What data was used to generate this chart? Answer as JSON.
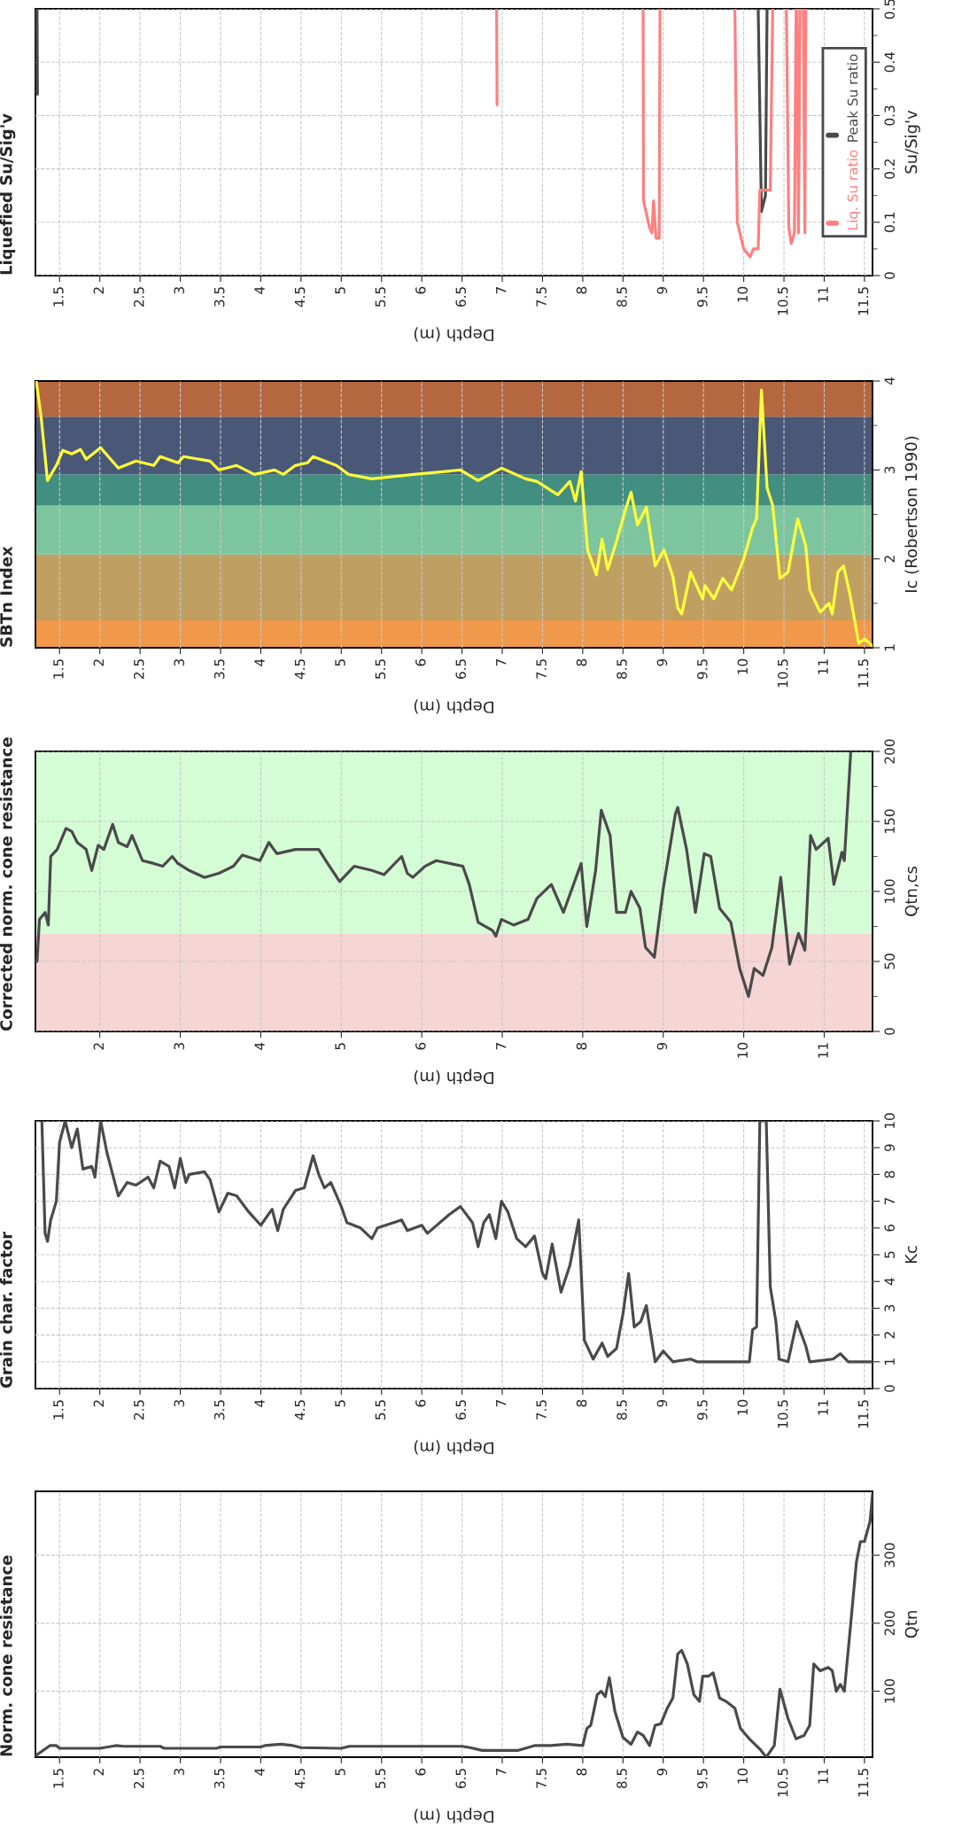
{
  "chart_data": [
    {
      "type": "line",
      "title": "Liquefied Su/Sig'v",
      "xlabel": "Depth (m)",
      "ylabel": "Su/Sig'v",
      "xlim": [
        1.2,
        11.6
      ],
      "xticks": [
        1.5,
        2,
        2.5,
        3,
        3.5,
        4,
        4.5,
        5,
        5.5,
        6,
        6.5,
        7,
        7.5,
        8,
        8.5,
        9,
        9.5,
        10,
        10.5,
        11,
        11.5
      ],
      "ylim": [
        0,
        0.5
      ],
      "yticks": [
        0,
        0.1,
        0.2,
        0.3,
        0.4,
        0.5,
        {
          "value": 0.05,
          "label": null
        },
        {
          "value": 0.15,
          "label": null
        },
        {
          "value": 0.25,
          "label": null
        },
        {
          "value": 0.35,
          "label": null
        },
        {
          "value": 0.45,
          "label": null
        }
      ],
      "grid": true,
      "legend": "right",
      "series": [
        {
          "name": "Peak Su ratio",
          "color": "#4a4a4a",
          "x": [
            1.22,
            1.225,
            5,
            10.18,
            10.22,
            10.27,
            10.29
          ],
          "values": [
            0.5,
            0.34,
            null,
            0.5,
            0.12,
            0.15,
            0.5
          ]
        },
        {
          "name": "Liq. Su ratio",
          "color": "#ff7f7f",
          "x": [
            6.93,
            6.935,
            7.5,
            8.75,
            8.755,
            8.83,
            8.86,
            8.88,
            8.91,
            8.95,
            8.96,
            9.4,
            9.89,
            9.92,
            10.0,
            10.08,
            10.12,
            10.18,
            10.2,
            10.33,
            10.36,
            10.5,
            10.53,
            10.56,
            10.59,
            10.63,
            10.65,
            10.66,
            10.68,
            10.7,
            10.74,
            10.76,
            10.77
          ],
          "values": [
            0.5,
            0.32,
            null,
            0.5,
            0.14,
            0.09,
            0.08,
            0.14,
            0.07,
            0.07,
            0.5,
            null,
            0.5,
            0.1,
            0.05,
            0.035,
            0.05,
            0.05,
            0.16,
            0.16,
            0.5,
            null,
            0.5,
            0.09,
            0.06,
            0.08,
            0.5,
            0.5,
            0.08,
            0.5,
            0.5,
            0.08,
            0.5
          ]
        }
      ]
    },
    {
      "type": "line",
      "title": "SBTn Index",
      "xlabel": "Depth (m)",
      "ylabel": "Ic (Robertson 1990)",
      "xlim": [
        1.2,
        11.6
      ],
      "xticks": [
        1.5,
        2,
        2.5,
        3,
        3.5,
        4,
        4.5,
        5,
        5.5,
        6,
        6.5,
        7,
        7.5,
        8,
        8.5,
        9,
        9.5,
        10,
        10.5,
        11,
        11.5
      ],
      "ylim": [
        1,
        4
      ],
      "yticks": [
        1,
        2,
        3,
        4,
        {
          "value": 1.5,
          "label": null
        },
        {
          "value": 2.5,
          "label": null
        },
        {
          "value": 3.5,
          "label": null
        }
      ],
      "grid": "x",
      "bands": [
        {
          "axis": "y",
          "from": 1,
          "to": 1.31,
          "color": "#f0994a"
        },
        {
          "axis": "y",
          "from": 1.31,
          "to": 2.05,
          "color": "#c0a062"
        },
        {
          "axis": "y",
          "from": 2.05,
          "to": 2.6,
          "color": "#7cc59f"
        },
        {
          "axis": "y",
          "from": 2.6,
          "to": 2.95,
          "color": "#428e80"
        },
        {
          "axis": "y",
          "from": 2.95,
          "to": 3.6,
          "color": "#4a5878"
        },
        {
          "axis": "y",
          "from": 3.6,
          "to": 4,
          "color": "#b5673f"
        }
      ],
      "series": [
        {
          "color": "#ffff3c",
          "x": [
            1.21,
            1.27,
            1.35,
            1.46,
            1.54,
            1.65,
            1.76,
            1.83,
            2.01,
            2.23,
            2.45,
            2.67,
            2.75,
            2.97,
            3.04,
            3.37,
            3.48,
            3.7,
            3.92,
            4.17,
            4.28,
            4.43,
            4.58,
            4.65,
            4.94,
            5.09,
            5.38,
            5.9,
            6.26,
            6.48,
            6.7,
            6.99,
            7.29,
            7.43,
            7.69,
            7.84,
            7.91,
            7.98,
            8.06,
            8.17,
            8.24,
            8.31,
            8.42,
            8.53,
            8.6,
            8.68,
            8.79,
            8.9,
            9.01,
            9.12,
            9.18,
            9.23,
            9.34,
            9.49,
            9.52,
            9.63,
            9.74,
            9.85,
            10.0,
            10.11,
            10.16,
            10.22,
            10.29,
            10.36,
            10.45,
            10.55,
            10.67,
            10.77,
            10.82,
            10.95,
            11.06,
            11.1,
            11.17,
            11.24,
            11.32,
            11.43,
            11.5,
            11.6
          ],
          "values": [
            4.0,
            3.6,
            2.88,
            3.05,
            3.22,
            3.18,
            3.23,
            3.12,
            3.25,
            3.02,
            3.1,
            3.05,
            3.15,
            3.08,
            3.15,
            3.1,
            3.0,
            3.05,
            2.95,
            3.0,
            2.95,
            3.05,
            3.08,
            3.15,
            3.05,
            2.95,
            2.9,
            2.95,
            2.98,
            3.0,
            2.88,
            3.02,
            2.9,
            2.87,
            2.72,
            2.87,
            2.65,
            2.98,
            2.1,
            1.82,
            2.22,
            1.88,
            2.2,
            2.55,
            2.75,
            2.38,
            2.58,
            1.92,
            2.1,
            1.8,
            1.45,
            1.38,
            1.85,
            1.55,
            1.7,
            1.55,
            1.78,
            1.65,
            2.0,
            2.35,
            2.45,
            3.9,
            2.8,
            2.6,
            1.78,
            1.85,
            2.45,
            2.15,
            1.65,
            1.4,
            1.5,
            1.38,
            1.85,
            1.92,
            1.6,
            1.05,
            1.1,
            1.02
          ]
        }
      ]
    },
    {
      "type": "line",
      "title": "Corrected norm. cone resistance",
      "xlabel": "Depth (m)",
      "ylabel": "Qtn,cs",
      "xlim": [
        1.2,
        11.6
      ],
      "xticks": [
        2,
        3,
        4,
        5,
        6,
        7,
        8,
        9,
        10,
        11
      ],
      "ylim": [
        0,
        200
      ],
      "yticks": [
        0,
        50,
        100,
        150,
        200,
        {
          "value": 25,
          "label": null
        },
        {
          "value": 75,
          "label": null
        },
        {
          "value": 125,
          "label": null
        },
        {
          "value": 175,
          "label": null
        }
      ],
      "grid": true,
      "bands": [
        {
          "axis": "y",
          "from": 0,
          "to": 70,
          "color": "#f6d5d5"
        },
        {
          "axis": "y",
          "from": 70,
          "to": 200,
          "color": "#d5fdd5"
        }
      ],
      "series": [
        {
          "color": "#4a4a4a",
          "x": [
            1.22,
            1.25,
            1.32,
            1.36,
            1.39,
            1.47,
            1.58,
            1.65,
            1.72,
            1.83,
            1.9,
            1.98,
            2.05,
            2.16,
            2.23,
            2.34,
            2.4,
            2.53,
            2.67,
            2.78,
            2.9,
            2.97,
            3.11,
            3.3,
            3.48,
            3.66,
            3.77,
            3.99,
            4.1,
            4.2,
            4.43,
            4.72,
            4.83,
            4.98,
            5.16,
            5.38,
            5.53,
            5.75,
            5.82,
            5.89,
            6.04,
            6.18,
            6.51,
            6.59,
            6.7,
            6.88,
            6.92,
            6.99,
            7.14,
            7.32,
            7.43,
            7.61,
            7.76,
            7.98,
            8.05,
            8.16,
            8.23,
            8.34,
            8.42,
            8.53,
            8.6,
            8.71,
            8.78,
            8.89,
            9.0,
            9.15,
            9.18,
            9.29,
            9.4,
            9.51,
            9.59,
            9.7,
            9.84,
            9.95,
            10.06,
            10.13,
            10.24,
            10.35,
            10.46,
            10.57,
            10.68,
            10.76,
            10.83,
            10.9,
            11.05,
            11.12,
            11.22,
            11.25,
            11.33
          ],
          "values": [
            50,
            80,
            85,
            76,
            125,
            130,
            145,
            143,
            135,
            130,
            115,
            133,
            130,
            148,
            135,
            132,
            140,
            122,
            120,
            118,
            125,
            120,
            115,
            110,
            113,
            118,
            126,
            122,
            135,
            127,
            130,
            130,
            120,
            107,
            118,
            115,
            112,
            125,
            113,
            110,
            118,
            122,
            118,
            105,
            78,
            72,
            68,
            80,
            76,
            80,
            95,
            105,
            85,
            120,
            75,
            115,
            158,
            140,
            85,
            85,
            100,
            88,
            60,
            53,
            102,
            155,
            160,
            130,
            85,
            127,
            125,
            88,
            78,
            45,
            25,
            45,
            40,
            60,
            110,
            48,
            70,
            58,
            140,
            130,
            138,
            105,
            128,
            122,
            200
          ]
        }
      ]
    },
    {
      "type": "line",
      "title": "Grain char. factor",
      "xlabel": "Depth (m)",
      "ylabel": "Kc",
      "xlim": [
        1.2,
        11.6
      ],
      "xticks": [
        1.5,
        2,
        2.5,
        3,
        3.5,
        4,
        4.5,
        5,
        5.5,
        6,
        6.5,
        7,
        7.5,
        8,
        8.5,
        9,
        9.5,
        10,
        10.5,
        11,
        11.5
      ],
      "ylim": [
        0,
        10
      ],
      "yticks": [
        0,
        1,
        2,
        3,
        4,
        5,
        6,
        7,
        8,
        9,
        10
      ],
      "grid": true,
      "series": [
        {
          "color": "#4a4a4a",
          "x": [
            1.28,
            1.32,
            1.35,
            1.39,
            1.46,
            1.5,
            1.57,
            1.65,
            1.72,
            1.79,
            1.9,
            1.94,
            2.01,
            2.09,
            2.16,
            2.23,
            2.34,
            2.45,
            2.6,
            2.67,
            2.75,
            2.86,
            2.93,
            3.0,
            3.07,
            3.11,
            3.3,
            3.37,
            3.48,
            3.59,
            3.7,
            3.85,
            4.0,
            4.14,
            4.21,
            4.28,
            4.43,
            4.54,
            4.65,
            4.72,
            4.79,
            4.87,
            5.0,
            5.07,
            5.24,
            5.38,
            5.45,
            5.75,
            5.82,
            6.0,
            6.07,
            6.34,
            6.48,
            6.63,
            6.7,
            6.77,
            6.84,
            6.92,
            6.99,
            7.07,
            7.18,
            7.29,
            7.4,
            7.5,
            7.54,
            7.62,
            7.73,
            7.84,
            7.95,
            8.02,
            8.13,
            8.24,
            8.31,
            8.42,
            8.5,
            8.57,
            8.64,
            8.72,
            8.79,
            8.9,
            9.0,
            9.12,
            9.34,
            9.42,
            10.07,
            10.11,
            10.16,
            10.2,
            10.28,
            10.33,
            10.4,
            10.44,
            10.55,
            10.66,
            10.77,
            10.82,
            11.11,
            11.2,
            11.3,
            11.6
          ],
          "values": [
            10,
            5.8,
            5.5,
            6.3,
            7,
            9.2,
            10,
            9,
            9.7,
            8.2,
            8.3,
            7.9,
            10,
            8.8,
            8,
            7.2,
            7.7,
            7.6,
            7.9,
            7.5,
            8.5,
            8.3,
            7.5,
            8.6,
            7.7,
            8,
            8.1,
            7.8,
            6.6,
            7.3,
            7.2,
            6.6,
            6.1,
            6.7,
            5.9,
            6.7,
            7.4,
            7.5,
            8.7,
            8.0,
            7.5,
            7.7,
            6.8,
            6.2,
            6.0,
            5.6,
            6.0,
            6.3,
            5.9,
            6.1,
            5.8,
            6.5,
            6.8,
            6.2,
            5.3,
            6.2,
            6.5,
            5.6,
            7.0,
            6.6,
            5.6,
            5.3,
            5.7,
            4.3,
            4.1,
            5.4,
            3.6,
            4.6,
            6.3,
            1.8,
            1.1,
            1.7,
            1.2,
            1.5,
            2.8,
            4.3,
            2.3,
            2.5,
            3.1,
            1.0,
            1.4,
            1.0,
            1.1,
            1.0,
            1.0,
            2.2,
            2.3,
            10,
            10,
            3.8,
            2.5,
            1.1,
            1.0,
            2.5,
            1.6,
            1.0,
            1.1,
            1.3,
            1.0,
            1.0
          ]
        }
      ]
    },
    {
      "type": "line",
      "title": "Norm. cone resistance",
      "xlabel": "Depth (m)",
      "ylabel": "Qtn",
      "xlim": [
        1.2,
        11.6
      ],
      "xticks": [
        1.5,
        2,
        2.5,
        3,
        3.5,
        4,
        4.5,
        5,
        5.5,
        6,
        6.5,
        7,
        7.5,
        8,
        8.5,
        9,
        9.5,
        10,
        10.5,
        11,
        11.5
      ],
      "ylim": [
        3,
        394
      ],
      "yticks": [
        100,
        200,
        300
      ],
      "grid": true,
      "series": [
        {
          "color": "#4a4a4a",
          "x": [
            1.2,
            1.38,
            1.46,
            1.5,
            2.0,
            2.2,
            2.3,
            2.75,
            2.8,
            3.45,
            3.5,
            4.0,
            4.05,
            4.25,
            4.4,
            4.5,
            5.0,
            5.1,
            6.5,
            6.6,
            6.75,
            7.2,
            7.4,
            7.6,
            7.8,
            8.0,
            8.05,
            8.1,
            8.18,
            8.23,
            8.28,
            8.33,
            8.4,
            8.5,
            8.6,
            8.68,
            8.75,
            8.83,
            8.9,
            8.97,
            9.05,
            9.12,
            9.18,
            9.23,
            9.3,
            9.38,
            9.45,
            9.49,
            9.56,
            9.62,
            9.7,
            9.78,
            9.89,
            9.96,
            10.07,
            10.2,
            10.28,
            10.38,
            10.45,
            10.55,
            10.65,
            10.75,
            10.82,
            10.87,
            10.95,
            11.05,
            11.1,
            11.15,
            11.2,
            11.25,
            11.33,
            11.4,
            11.45,
            11.5,
            11.57,
            11.6
          ],
          "values": [
            5,
            20,
            20,
            16,
            16,
            20,
            19,
            19,
            16,
            16,
            18,
            18,
            20,
            22,
            20,
            17,
            16,
            19,
            19,
            17,
            13,
            13,
            20,
            20,
            22,
            20,
            45,
            50,
            95,
            100,
            92,
            120,
            70,
            32,
            22,
            40,
            35,
            20,
            50,
            52,
            75,
            90,
            155,
            160,
            140,
            95,
            85,
            122,
            122,
            127,
            90,
            85,
            75,
            45,
            30,
            15,
            3,
            20,
            103,
            60,
            30,
            35,
            50,
            140,
            130,
            135,
            130,
            100,
            110,
            100,
            200,
            290,
            320,
            320,
            350,
            390
          ]
        }
      ]
    }
  ]
}
